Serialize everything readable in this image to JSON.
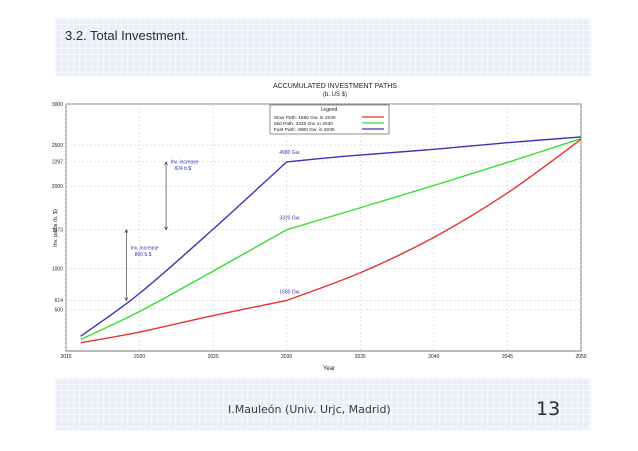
{
  "slide": {
    "title": "3.2. Total Investment.",
    "footer": "I.Mauleón (Univ. Urjc, Madrid)",
    "page_number": "13"
  },
  "chart_data": {
    "type": "line",
    "title": "ACCUMULATED INVESTMENT PATHS",
    "subtitle": "(b. US $)",
    "xlabel": "Year",
    "ylabel": "Inv. paths (b. $)",
    "xlim": [
      2015,
      2050
    ],
    "ylim": [
      0,
      3000
    ],
    "xticks": [
      "2015",
      "2020",
      "2025",
      "2030",
      "2035",
      "2040",
      "2045",
      "2050"
    ],
    "yticks": [
      "500",
      "614",
      "1000",
      "1473",
      "2000",
      "2297",
      "2500",
      "3000"
    ],
    "grid": true,
    "legend": {
      "title": "Legend",
      "placement": "top-center",
      "entries": [
        "Slow Path: 1660 Gw. in 2030",
        "Mid Path: 3320 Gw. in 2030",
        "Fast Path: 4980 Gw. in 2030"
      ]
    },
    "series": [
      {
        "name": "Slow Path: 1660 Gw. in 2030",
        "color": "#e8322e",
        "x": [
          2016,
          2020,
          2025,
          2030,
          2035,
          2040,
          2045,
          2050
        ],
        "y": [
          100,
          230,
          430,
          614,
          950,
          1380,
          1920,
          2570
        ]
      },
      {
        "name": "Mid Path: 3320 Gw. in 2030",
        "color": "#33e02e",
        "x": [
          2016,
          2020,
          2025,
          2030,
          2035,
          2040,
          2045,
          2050
        ],
        "y": [
          140,
          480,
          970,
          1473,
          1740,
          2010,
          2290,
          2580
        ]
      },
      {
        "name": "Fast Path: 4980 Gw. in 2030",
        "color": "#3a36b8",
        "x": [
          2016,
          2020,
          2025,
          2030,
          2033,
          2035,
          2040,
          2045,
          2050
        ],
        "y": [
          180,
          700,
          1480,
          2297,
          2350,
          2380,
          2450,
          2530,
          2600
        ]
      }
    ],
    "annotations": [
      {
        "text": "4980 Gw.",
        "x": 2029.5,
        "y": 2390
      },
      {
        "text": "3320 Gw.",
        "x": 2029.5,
        "y": 1600
      },
      {
        "text": "1660 Gw.",
        "x": 2029.5,
        "y": 700
      },
      {
        "text": "Inv. increase 824 b.$",
        "lines": [
          "Inv. increase",
          "824 b.$"
        ],
        "x": 2022.1,
        "y": 2280,
        "arrow_from": 2297,
        "arrow_to": 1473,
        "arrow_x": 2021.8
      },
      {
        "text": "Inv. increase 860 b.$",
        "lines": [
          "Inv. increase",
          "860 b.$"
        ],
        "x": 2019.4,
        "y": 1230,
        "arrow_from": 1473,
        "arrow_to": 614,
        "arrow_x": 2019.1
      }
    ]
  }
}
